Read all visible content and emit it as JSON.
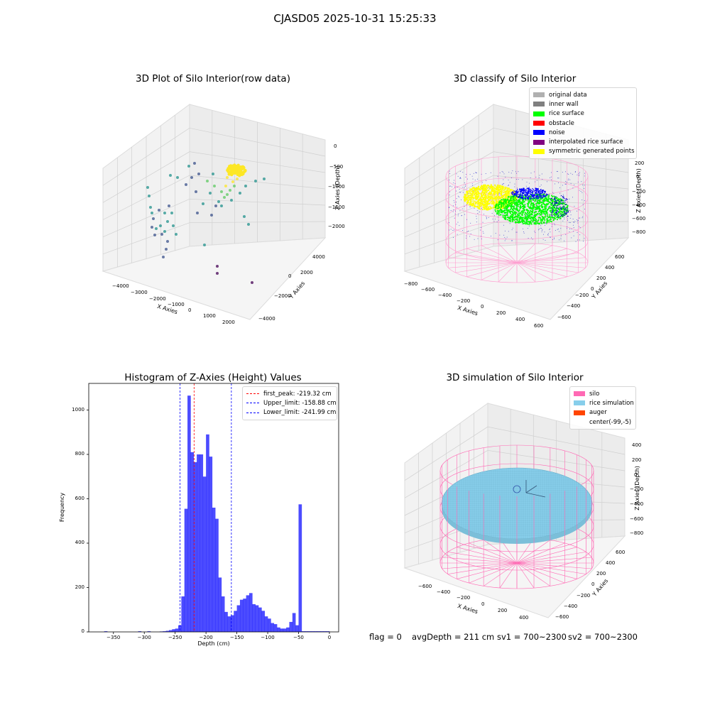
{
  "suptitle": "CJASD05 2025-10-31 15:25:33",
  "footer": {
    "flag": "flag = 0",
    "avg_depth": "avgDepth = 211 cm",
    "sv1": "sv1 = 700~2300",
    "sv2": "sv2 = 700~2300"
  },
  "chart_data": [
    {
      "type": "scatter",
      "title": "3D Plot of Silo Interior(row data)",
      "xlabel": "X Axies",
      "ylabel": "Y Axies",
      "zlabel": "Z Axies (Depth)",
      "x_ticks": [
        "−4000",
        "−3000",
        "−2000",
        "−1000",
        "0",
        "1000",
        "2000"
      ],
      "y_ticks": [
        "−4000",
        "−2000",
        "0",
        "2000",
        "4000"
      ],
      "z_ticks": [
        "0",
        "−500",
        "−1000",
        "−1500",
        "−2000"
      ],
      "xlim": [
        -4500,
        2500
      ],
      "ylim": [
        -4500,
        4500
      ],
      "zlim": [
        -2300,
        0
      ],
      "colormap": "viridis",
      "colors": [
        "#440154",
        "#3b528b",
        "#21918c",
        "#5ec962",
        "#fde725"
      ]
    },
    {
      "type": "scatter",
      "title": "3D classify of Silo Interior",
      "xlabel": "X Axies",
      "ylabel": "Y Axies",
      "zlabel": "Z Axies (Depth)",
      "x_ticks": [
        "−800",
        "−600",
        "−400",
        "−200",
        "0",
        "200",
        "400",
        "600"
      ],
      "y_ticks": [
        "−600",
        "−400",
        "−200",
        "0",
        "200",
        "400",
        "600"
      ],
      "z_ticks": [
        "200",
        "0",
        "−200",
        "−400",
        "−600",
        "−800"
      ],
      "legend": [
        {
          "label": "original data",
          "color": "#b0b0b0"
        },
        {
          "label": "inner wall",
          "color": "#808080"
        },
        {
          "label": "rice surface",
          "color": "#00ff00"
        },
        {
          "label": "obstacle",
          "color": "#ff0000"
        },
        {
          "label": "noise",
          "color": "#0000ff"
        },
        {
          "label": "interpolated rice surface",
          "color": "#800080"
        },
        {
          "label": "symmetric generated points",
          "color": "#ffff00"
        }
      ]
    },
    {
      "type": "bar",
      "title": "Histogram of Z-Axies (Height) Values",
      "xlabel": "Depth (cm)",
      "ylabel": "Frequency",
      "xlim": [
        -390,
        15
      ],
      "ylim": [
        0,
        1120
      ],
      "x_ticks": [
        -350,
        -300,
        -250,
        -200,
        -150,
        -100,
        -50,
        0
      ],
      "y_ticks": [
        0,
        200,
        400,
        600,
        800,
        1000
      ],
      "bar_color": "#0000ff",
      "bin_width": 5,
      "bin_starts": [
        -365,
        -310,
        -295,
        -275,
        -270,
        -265,
        -260,
        -255,
        -250,
        -245,
        -240,
        -235,
        -230,
        -225,
        -220,
        -215,
        -210,
        -205,
        -200,
        -195,
        -190,
        -185,
        -180,
        -175,
        -170,
        -165,
        -160,
        -155,
        -150,
        -145,
        -140,
        -135,
        -130,
        -125,
        -120,
        -115,
        -110,
        -105,
        -100,
        -95,
        -90,
        -85,
        -80,
        -75,
        -70,
        -65,
        -60,
        -55,
        -50,
        -45,
        -40,
        -35,
        -30,
        -25,
        -20,
        -15,
        -10,
        -5
      ],
      "values": [
        3,
        3,
        3,
        2,
        3,
        5,
        8,
        12,
        15,
        30,
        160,
        555,
        1065,
        810,
        765,
        800,
        800,
        700,
        890,
        790,
        560,
        510,
        245,
        160,
        90,
        70,
        75,
        95,
        120,
        145,
        150,
        165,
        175,
        125,
        120,
        110,
        95,
        70,
        60,
        40,
        35,
        20,
        15,
        15,
        20,
        45,
        85,
        30,
        575,
        3,
        3,
        3,
        3,
        3,
        3,
        3,
        3,
        3
      ],
      "lines": [
        {
          "label": "first_peak: -219.32 cm",
          "x": -219.32,
          "color": "#ff0000"
        },
        {
          "label": "Upper_limit: -158.88 cm",
          "x": -158.88,
          "color": "#0000ff"
        },
        {
          "label": "Lower_limit: -241.99 cm",
          "x": -241.99,
          "color": "#0000ff"
        }
      ]
    },
    {
      "type": "scatter",
      "title": "3D simulation of Silo Interior",
      "xlabel": "X Axies",
      "ylabel": "Y Axies",
      "zlabel": "Z Axies (Depth)",
      "x_ticks": [
        "−600",
        "−400",
        "−200",
        "0",
        "200",
        "400"
      ],
      "y_ticks": [
        "−600",
        "−400",
        "−200",
        "0",
        "200",
        "400",
        "600"
      ],
      "z_ticks": [
        "400",
        "200",
        "0",
        "−200",
        "−400",
        "−600",
        "−800"
      ],
      "legend": [
        {
          "label": "silo",
          "color": "#ff69b4"
        },
        {
          "label": "rice simulation",
          "color": "#87ceeb"
        },
        {
          "label": "auger",
          "color": "#ff4500"
        },
        {
          "label": "center(-99,-5)",
          "color": ""
        }
      ]
    }
  ]
}
